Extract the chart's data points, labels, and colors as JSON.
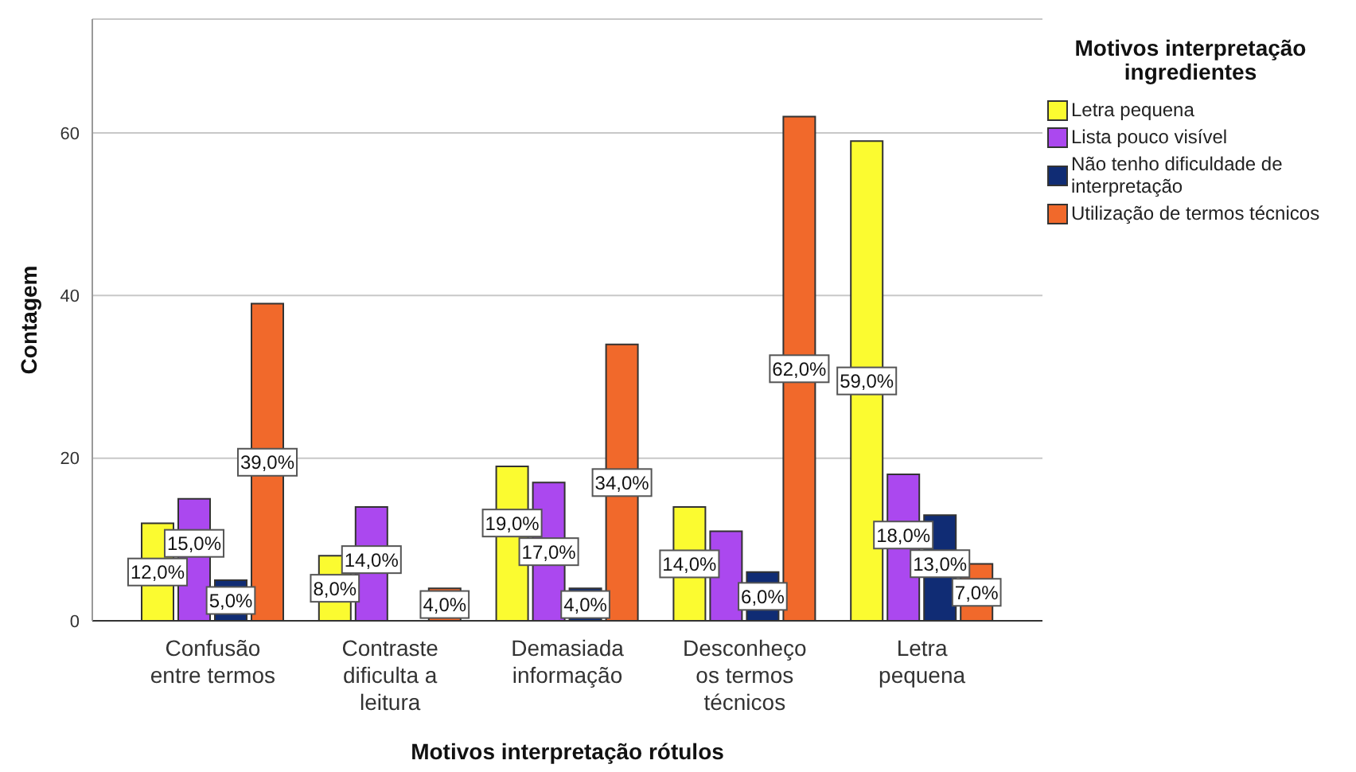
{
  "chart_data": {
    "type": "bar",
    "xlabel": "Motivos interpretação rótulos",
    "ylabel": "Contagem",
    "legend_title": "Motivos interpretação ingredientes",
    "categories": [
      "Confusão entre termos",
      "Contraste dificulta a leitura",
      "Demasiada informação",
      "Desconheço os termos técnicos",
      "Letra pequena"
    ],
    "series": [
      {
        "name": "Letra pequena",
        "color": "#fbfb30",
        "values": [
          12,
          8,
          19,
          14,
          59
        ],
        "value_labels": [
          "12,0%",
          "8,0%",
          "19,0%",
          "14,0%",
          "59,0%"
        ]
      },
      {
        "name": "Lista pouco visível",
        "color": "#ab48ef",
        "values": [
          15,
          14,
          17,
          11,
          18
        ],
        "value_labels": [
          "15,0%",
          "14,0%",
          "17,0%",
          null,
          "18,0%"
        ]
      },
      {
        "name": "Não tenho dificuldade de interpretação",
        "color": "#102c74",
        "values": [
          5,
          null,
          4,
          6,
          13
        ],
        "value_labels": [
          "5,0%",
          null,
          "4,0%",
          "6,0%",
          "13,0%"
        ]
      },
      {
        "name": "Utilização de termos técnicos",
        "color": "#f1692b",
        "values": [
          39,
          4,
          34,
          62,
          7
        ],
        "value_labels": [
          "39,0%",
          "4,0%",
          "34,0%",
          "62,0%",
          "7,0%"
        ]
      }
    ],
    "ylim": [
      0,
      74
    ],
    "yticks": [
      0,
      20,
      40,
      60
    ],
    "grid": "y",
    "legend": "top right"
  }
}
